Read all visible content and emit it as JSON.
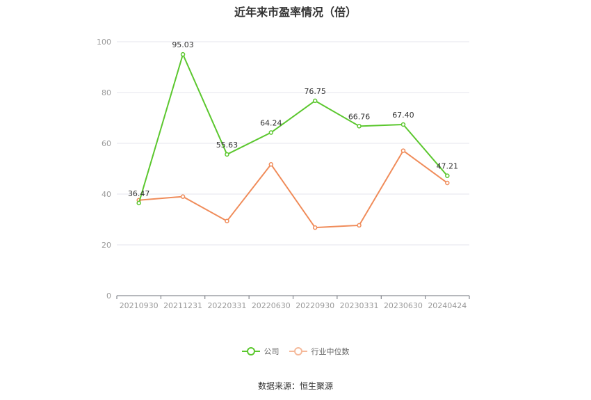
{
  "chart_data": {
    "type": "line",
    "title": "近年来市盈率情况（倍）",
    "categories": [
      "20210930",
      "20211231",
      "20220331",
      "20220630",
      "20220930",
      "20230331",
      "20230630",
      "20240424"
    ],
    "series": [
      {
        "name": "公司",
        "color": "#5bc72e",
        "values": [
          36.47,
          95.03,
          55.63,
          64.24,
          76.75,
          66.76,
          67.4,
          47.21
        ],
        "labels": [
          "36.47",
          "95.03",
          "55.63",
          "64.24",
          "76.75",
          "66.76",
          "67.40",
          "47.21"
        ]
      },
      {
        "name": "行业中位数",
        "color": "#f08c5a",
        "values": [
          37.6,
          39.0,
          29.4,
          51.7,
          26.8,
          27.7,
          57.1,
          44.4
        ]
      }
    ],
    "ylim": [
      0,
      100
    ],
    "yticks": [
      0,
      20,
      40,
      60,
      80,
      100
    ],
    "grid": true,
    "legend_position": "bottom"
  },
  "source": "数据来源：恒生聚源"
}
